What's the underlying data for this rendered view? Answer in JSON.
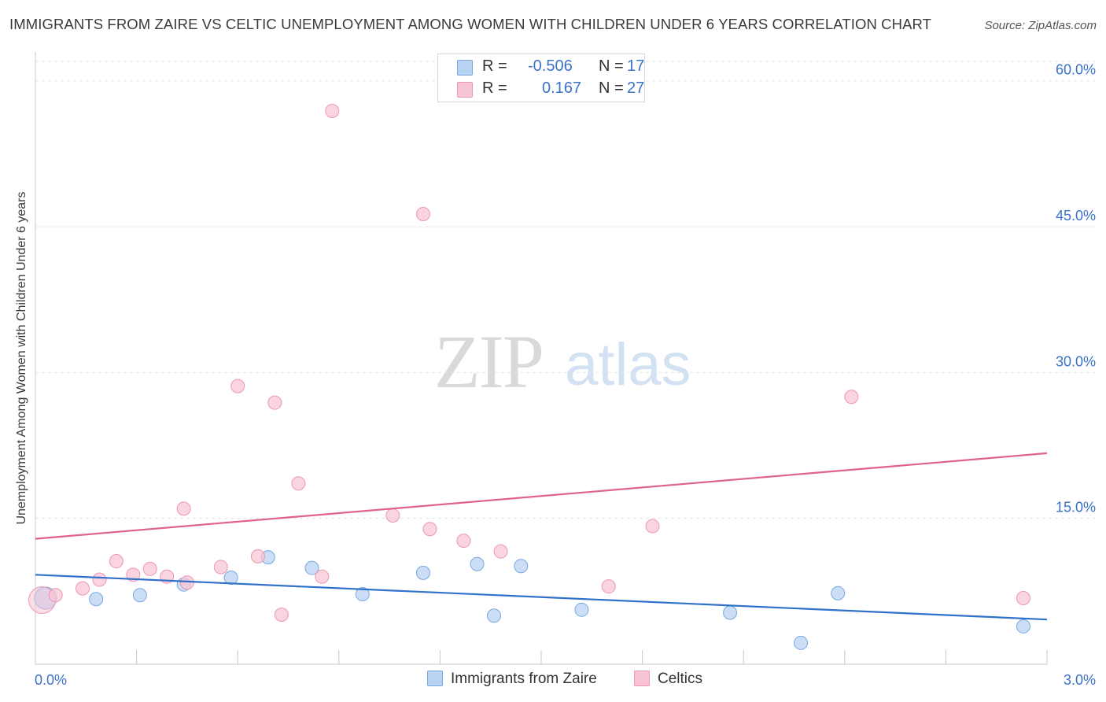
{
  "title": "IMMIGRANTS FROM ZAIRE VS CELTIC UNEMPLOYMENT AMONG WOMEN WITH CHILDREN UNDER 6 YEARS CORRELATION CHART",
  "source": "Source: ZipAtlas.com",
  "watermark": {
    "zip": "ZIP",
    "atlas": "atlas"
  },
  "legend": {
    "rows": [
      {
        "r_label": "R =",
        "r_value": "-0.506",
        "n_label": "N =",
        "n_value": "17"
      },
      {
        "r_label": "R =",
        "r_value": "0.167",
        "n_label": "N =",
        "n_value": "27"
      }
    ]
  },
  "colors": {
    "blue_fill": "#b9d3f3",
    "blue_stroke": "#7aa7e0",
    "blue_line": "#2f70c9",
    "pink_fill": "#f8c5d5",
    "pink_stroke": "#ec97b3",
    "pink_line": "#e0628c",
    "axis_text": "#3a72c8",
    "grid": "#e3e3e3"
  },
  "chart_data": {
    "type": "scatter",
    "title": "IMMIGRANTS FROM ZAIRE VS CELTIC UNEMPLOYMENT AMONG WOMEN WITH CHILDREN UNDER 6 YEARS CORRELATION CHART",
    "xlabel": "",
    "ylabel": "Unemployment Among Women with Children Under 6 years",
    "xlim": [
      0.0,
      3.0
    ],
    "ylim": [
      0.0,
      62.0
    ],
    "x_tick_labels": [
      "0.0%",
      "3.0%"
    ],
    "y_ticks": [
      15.0,
      30.0,
      45.0,
      60.0
    ],
    "y_tick_labels": [
      "15.0%",
      "30.0%",
      "45.0%",
      "60.0%"
    ],
    "grid": true,
    "legend_position": "top-center",
    "series": [
      {
        "name": "Immigrants from Zaire",
        "color": "#b9d3f3",
        "points": [
          [
            0.03,
            6.8
          ],
          [
            0.18,
            6.7
          ],
          [
            0.31,
            7.1
          ],
          [
            0.44,
            8.2
          ],
          [
            0.58,
            8.9
          ],
          [
            0.69,
            11.0
          ],
          [
            0.82,
            9.9
          ],
          [
            0.97,
            7.2
          ],
          [
            1.15,
            9.4
          ],
          [
            1.31,
            10.3
          ],
          [
            1.36,
            5.0
          ],
          [
            1.44,
            10.1
          ],
          [
            1.62,
            5.6
          ],
          [
            2.06,
            5.3
          ],
          [
            2.27,
            2.2
          ],
          [
            2.38,
            7.3
          ],
          [
            2.93,
            3.9
          ]
        ],
        "trend": {
          "x": [
            0.0,
            3.0
          ],
          "y": [
            9.2,
            4.6
          ]
        }
      },
      {
        "name": "Celtics",
        "color": "#f8c5d5",
        "points": [
          [
            0.02,
            6.6
          ],
          [
            0.06,
            7.1
          ],
          [
            0.14,
            7.8
          ],
          [
            0.19,
            8.7
          ],
          [
            0.24,
            10.6
          ],
          [
            0.29,
            9.2
          ],
          [
            0.34,
            9.8
          ],
          [
            0.39,
            9.0
          ],
          [
            0.45,
            8.4
          ],
          [
            0.44,
            16.0
          ],
          [
            0.55,
            10.0
          ],
          [
            0.6,
            28.6
          ],
          [
            0.66,
            11.1
          ],
          [
            0.71,
            26.9
          ],
          [
            0.73,
            5.1
          ],
          [
            0.78,
            18.6
          ],
          [
            0.85,
            9.0
          ],
          [
            0.88,
            56.9
          ],
          [
            1.06,
            15.3
          ],
          [
            1.17,
            13.9
          ],
          [
            1.15,
            46.3
          ],
          [
            1.27,
            12.7
          ],
          [
            1.38,
            11.6
          ],
          [
            1.7,
            8.0
          ],
          [
            1.83,
            14.2
          ],
          [
            2.42,
            27.5
          ],
          [
            2.93,
            6.8
          ]
        ],
        "trend": {
          "x": [
            0.0,
            3.0
          ],
          "y": [
            12.9,
            21.7
          ]
        }
      }
    ]
  },
  "bottom_legend": {
    "items": [
      "Immigrants from Zaire",
      "Celtics"
    ]
  }
}
